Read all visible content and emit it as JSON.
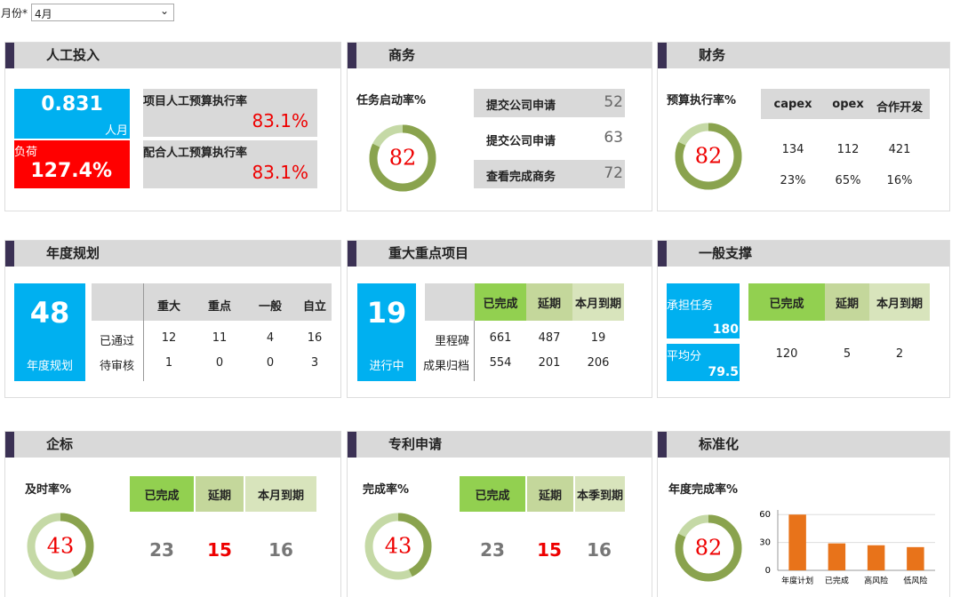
{
  "filter": {
    "label": "月份*",
    "value": "4月"
  },
  "manpower": {
    "title": "人工投入",
    "actual": {
      "value": 0.831,
      "unit": "人月"
    },
    "load": {
      "label": "负荷",
      "value": "127.4%"
    },
    "rates": [
      {
        "label": "项目人工预算执行率",
        "value": "83.1%"
      },
      {
        "label": "配合人工预算执行率",
        "value": "83.1%"
      }
    ]
  },
  "business": {
    "title": "商务",
    "gauge": {
      "label": "任务启动率%",
      "value": 82
    },
    "items": [
      {
        "label": "提交公司申请",
        "value": 52
      },
      {
        "label": "提交公司申请",
        "value": 63
      },
      {
        "label": "查看完成商务",
        "value": 72
      }
    ]
  },
  "finance": {
    "title": "财务",
    "gauge": {
      "label": "预算执行率%",
      "value": 82
    },
    "table": {
      "columns": [
        "capex",
        "opex",
        "合作开发"
      ],
      "rows": [
        [
          134,
          112,
          421
        ],
        [
          "23%",
          "65%",
          "16%"
        ]
      ]
    }
  },
  "annual": {
    "title": "年度规划",
    "total": {
      "value": 48,
      "label": "年度规划"
    },
    "table": {
      "columns": [
        "重大",
        "重点",
        "一般",
        "自立"
      ],
      "rows": [
        {
          "label": "已通过",
          "values": [
            12,
            11,
            4,
            16
          ]
        },
        {
          "label": "待审核",
          "values": [
            1,
            0,
            0,
            3
          ]
        }
      ]
    }
  },
  "major": {
    "title": "重大重点项目",
    "total": {
      "value": 19,
      "label": "进行中"
    },
    "table": {
      "columns": [
        "已完成",
        "延期",
        "本月到期"
      ],
      "rows": [
        {
          "label": "里程碑",
          "values": [
            661,
            487,
            19
          ]
        },
        {
          "label": "成果归档",
          "values": [
            554,
            201,
            206
          ]
        }
      ]
    }
  },
  "support": {
    "title": "一般支撑",
    "tasks": {
      "label": "承担任务",
      "value": 180
    },
    "score": {
      "label": "平均分",
      "value": 79.5
    },
    "table": {
      "columns": [
        "已完成",
        "延期",
        "本月到期"
      ],
      "values": [
        120,
        5,
        2
      ]
    }
  },
  "bid": {
    "title": "企标",
    "gauge": {
      "label": "及时率%",
      "value": 43
    },
    "table": {
      "columns": [
        "已完成",
        "延期",
        "本月到期"
      ],
      "values": [
        23,
        15,
        16
      ]
    }
  },
  "patent": {
    "title": "专利申请",
    "gauge": {
      "label": "完成率%",
      "value": 43
    },
    "table": {
      "columns": [
        "已完成",
        "延期",
        "本季到期"
      ],
      "values": [
        23,
        15,
        16
      ]
    }
  },
  "standard": {
    "title": "标准化",
    "gauge": {
      "label": "年度完成率%",
      "value": 82
    },
    "chart_data": {
      "type": "bar",
      "categories": [
        "年度计划",
        "已完成",
        "高风险",
        "低风险"
      ],
      "values": [
        60,
        29,
        27,
        25
      ],
      "color": "#e8731a",
      "ylim": [
        0,
        65
      ],
      "yticks": [
        0,
        30,
        60
      ]
    }
  }
}
